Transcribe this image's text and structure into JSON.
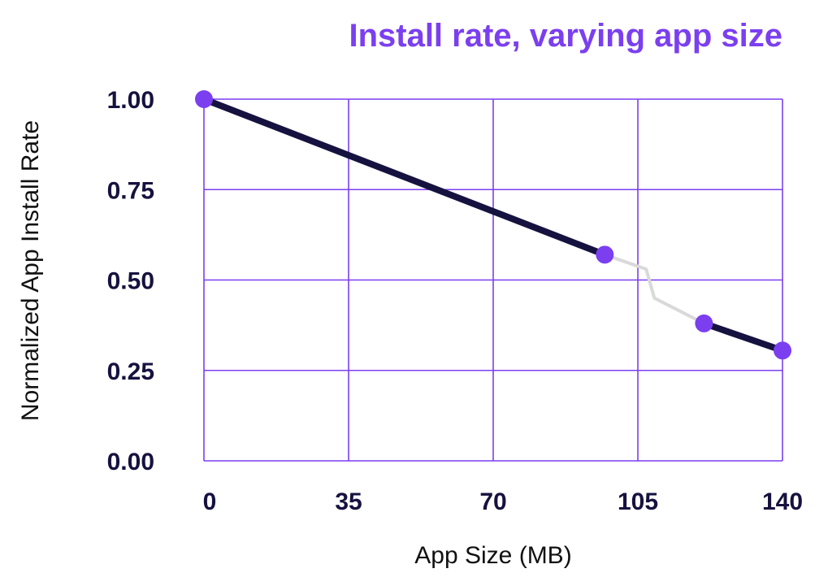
{
  "colors": {
    "title": "#7b3ff0",
    "grid": "#7b3ff0",
    "line": "#16123f",
    "segment_gray": "#d9d9d9",
    "marker": "#7b3ff0",
    "text": "#16123f"
  },
  "chart_data": {
    "type": "line",
    "title": "Install rate, varying app size",
    "xlabel": "App Size (MB)",
    "ylabel": "Normalized App Install Rate",
    "xlim": [
      0,
      140
    ],
    "ylim": [
      0,
      1
    ],
    "x_ticks": [
      "0",
      "35",
      "70",
      "105",
      "140"
    ],
    "y_ticks": [
      "0.00",
      "0.25",
      "0.50",
      "0.75",
      "1.00"
    ],
    "grid": true,
    "series": [
      {
        "style": "bold-dark",
        "points": [
          [
            0,
            1.0
          ],
          [
            97,
            0.57
          ]
        ]
      },
      {
        "style": "thin-gray",
        "points": [
          [
            97,
            0.57
          ],
          [
            107,
            0.53
          ],
          [
            109,
            0.45
          ],
          [
            121,
            0.38
          ]
        ]
      },
      {
        "style": "bold-dark",
        "points": [
          [
            121,
            0.38
          ],
          [
            140,
            0.305
          ]
        ]
      }
    ],
    "markers": [
      [
        0,
        1.0
      ],
      [
        97,
        0.57
      ],
      [
        121,
        0.38
      ],
      [
        140,
        0.305
      ]
    ]
  }
}
